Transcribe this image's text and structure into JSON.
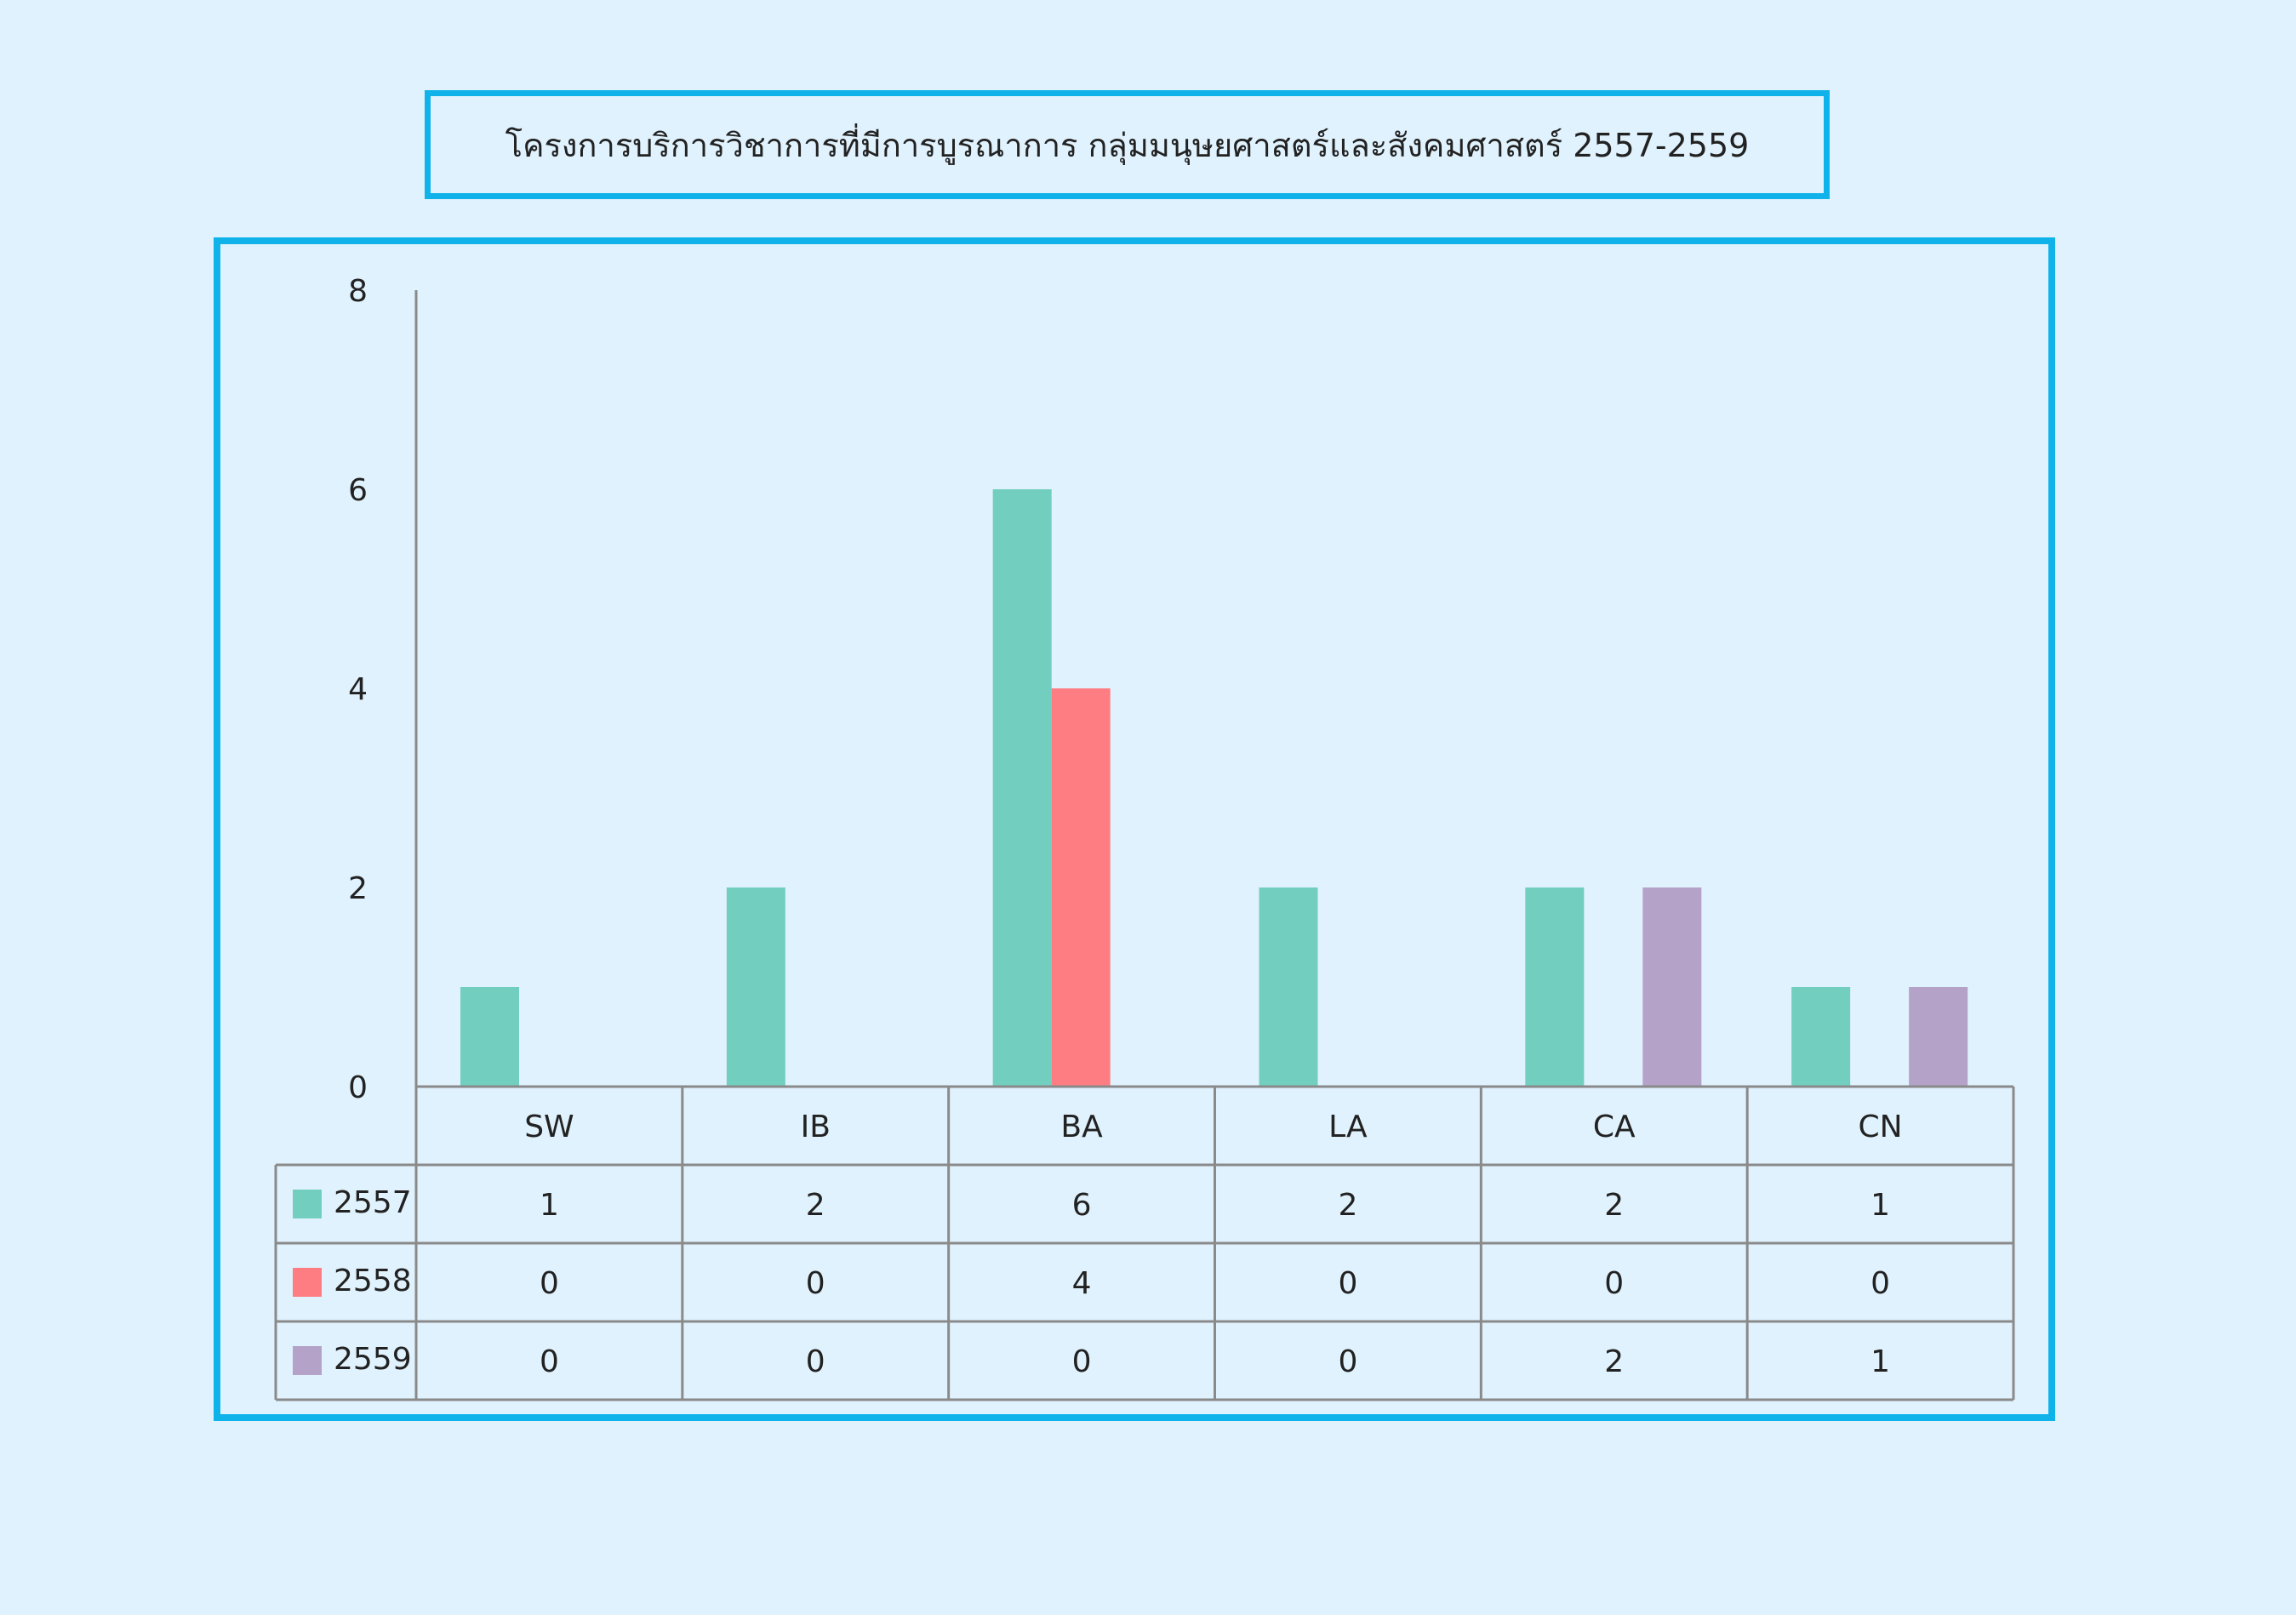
{
  "chart_data": {
    "type": "bar",
    "title": "โครงการบริการวิชาการที่มีการบูรณาการ กลุ่มมนุษยศาสตร์และสังคมศาสตร์  2557-2559",
    "categories": [
      "SW",
      "IB",
      "BA",
      "LA",
      "CA",
      "CN"
    ],
    "series": [
      {
        "name": "2557",
        "values": [
          1,
          2,
          6,
          2,
          2,
          1
        ],
        "color": "#72cfbf"
      },
      {
        "name": "2558",
        "values": [
          0,
          0,
          4,
          0,
          0,
          0
        ],
        "color": "#fe7d83"
      },
      {
        "name": "2559",
        "values": [
          0,
          0,
          0,
          0,
          2,
          1
        ],
        "color": "#b4a2c9"
      }
    ],
    "ylim": [
      0,
      8
    ],
    "yticks": [
      "0",
      "2",
      "4",
      "6",
      "8"
    ],
    "grid": false,
    "legend": "data-table"
  }
}
